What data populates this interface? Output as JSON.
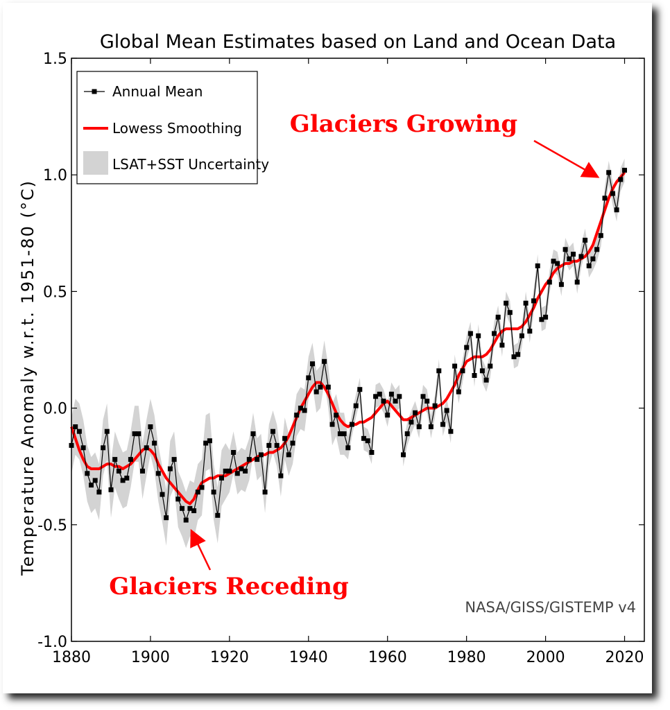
{
  "chart_data": {
    "type": "line",
    "title": "Global Mean Estimates based on Land and Ocean Data",
    "xlabel": "",
    "ylabel": "Temperature Anomaly w.r.t. 1951-80 (°C)",
    "xlim": [
      1880,
      2025
    ],
    "ylim": [
      -1.0,
      1.5
    ],
    "x_ticks": [
      1880,
      1900,
      1920,
      1940,
      1960,
      1980,
      2000,
      2020
    ],
    "y_ticks": [
      -1.0,
      -0.5,
      0.0,
      0.5,
      1.0,
      1.5
    ],
    "y_tick_labels": [
      "-1.0",
      "-0.5",
      "0.0",
      "0.5",
      "1.0",
      "1.5"
    ],
    "grid": false,
    "legend_position": "top-left",
    "legend": [
      "Annual Mean",
      "Lowess Smoothing",
      "LSAT+SST Uncertainty"
    ],
    "source_label": "NASA/GISS/GISTEMP v4",
    "colors": {
      "annual": "#000000",
      "lowess": "#ff0000",
      "uncertainty": "#d3d3d3",
      "annotation": "#ff0000"
    },
    "annotations": [
      {
        "text": "Glaciers Growing",
        "target_year": 2015,
        "target_value": 1.0
      },
      {
        "text": "Glaciers Receding",
        "target_year": 1910,
        "target_value": -0.49
      }
    ],
    "x": [
      1880,
      1881,
      1882,
      1883,
      1884,
      1885,
      1886,
      1887,
      1888,
      1889,
      1890,
      1891,
      1892,
      1893,
      1894,
      1895,
      1896,
      1897,
      1898,
      1899,
      1900,
      1901,
      1902,
      1903,
      1904,
      1905,
      1906,
      1907,
      1908,
      1909,
      1910,
      1911,
      1912,
      1913,
      1914,
      1915,
      1916,
      1917,
      1918,
      1919,
      1920,
      1921,
      1922,
      1923,
      1924,
      1925,
      1926,
      1927,
      1928,
      1929,
      1930,
      1931,
      1932,
      1933,
      1934,
      1935,
      1936,
      1937,
      1938,
      1939,
      1940,
      1941,
      1942,
      1943,
      1944,
      1945,
      1946,
      1947,
      1948,
      1949,
      1950,
      1951,
      1952,
      1953,
      1954,
      1955,
      1956,
      1957,
      1958,
      1959,
      1960,
      1961,
      1962,
      1963,
      1964,
      1965,
      1966,
      1967,
      1968,
      1969,
      1970,
      1971,
      1972,
      1973,
      1974,
      1975,
      1976,
      1977,
      1978,
      1979,
      1980,
      1981,
      1982,
      1983,
      1984,
      1985,
      1986,
      1987,
      1988,
      1989,
      1990,
      1991,
      1992,
      1993,
      1994,
      1995,
      1996,
      1997,
      1998,
      1999,
      2000,
      2001,
      2002,
      2003,
      2004,
      2005,
      2006,
      2007,
      2008,
      2009,
      2010,
      2011,
      2012,
      2013,
      2014,
      2015,
      2016,
      2017,
      2018,
      2019,
      2020
    ],
    "series": [
      {
        "name": "Annual Mean",
        "values": [
          -0.16,
          -0.08,
          -0.1,
          -0.17,
          -0.28,
          -0.33,
          -0.31,
          -0.36,
          -0.17,
          -0.1,
          -0.35,
          -0.22,
          -0.27,
          -0.31,
          -0.3,
          -0.22,
          -0.11,
          -0.11,
          -0.27,
          -0.17,
          -0.08,
          -0.15,
          -0.28,
          -0.37,
          -0.47,
          -0.26,
          -0.22,
          -0.39,
          -0.43,
          -0.48,
          -0.43,
          -0.44,
          -0.36,
          -0.34,
          -0.15,
          -0.14,
          -0.36,
          -0.46,
          -0.3,
          -0.27,
          -0.27,
          -0.19,
          -0.28,
          -0.26,
          -0.27,
          -0.22,
          -0.11,
          -0.22,
          -0.2,
          -0.36,
          -0.16,
          -0.1,
          -0.16,
          -0.29,
          -0.13,
          -0.2,
          -0.15,
          -0.03,
          -0.0,
          -0.01,
          0.13,
          0.19,
          0.07,
          0.09,
          0.2,
          0.09,
          -0.07,
          -0.03,
          -0.11,
          -0.11,
          -0.17,
          -0.07,
          0.01,
          0.08,
          -0.13,
          -0.14,
          -0.19,
          0.05,
          0.06,
          0.03,
          -0.03,
          0.06,
          0.03,
          0.05,
          -0.2,
          -0.11,
          -0.06,
          -0.02,
          -0.08,
          0.05,
          0.03,
          -0.08,
          0.01,
          0.16,
          -0.07,
          -0.01,
          -0.1,
          0.18,
          0.07,
          0.16,
          0.26,
          0.32,
          0.14,
          0.31,
          0.16,
          0.12,
          0.18,
          0.32,
          0.39,
          0.27,
          0.45,
          0.41,
          0.22,
          0.23,
          0.31,
          0.45,
          0.33,
          0.46,
          0.61,
          0.38,
          0.39,
          0.54,
          0.63,
          0.62,
          0.53,
          0.68,
          0.64,
          0.66,
          0.54,
          0.65,
          0.72,
          0.61,
          0.64,
          0.68,
          0.74,
          0.9,
          1.01,
          0.92,
          0.85,
          0.98,
          1.02
        ]
      },
      {
        "name": "Lowess Smoothing",
        "values": [
          -0.08,
          -0.13,
          -0.18,
          -0.22,
          -0.25,
          -0.26,
          -0.26,
          -0.26,
          -0.25,
          -0.24,
          -0.24,
          -0.25,
          -0.25,
          -0.26,
          -0.25,
          -0.24,
          -0.22,
          -0.2,
          -0.18,
          -0.17,
          -0.18,
          -0.2,
          -0.24,
          -0.27,
          -0.3,
          -0.32,
          -0.34,
          -0.36,
          -0.38,
          -0.4,
          -0.41,
          -0.39,
          -0.35,
          -0.32,
          -0.31,
          -0.3,
          -0.3,
          -0.29,
          -0.29,
          -0.29,
          -0.28,
          -0.27,
          -0.26,
          -0.25,
          -0.24,
          -0.23,
          -0.22,
          -0.21,
          -0.2,
          -0.2,
          -0.19,
          -0.19,
          -0.18,
          -0.17,
          -0.15,
          -0.12,
          -0.08,
          -0.04,
          0.0,
          0.03,
          0.06,
          0.09,
          0.11,
          0.11,
          0.09,
          0.06,
          0.02,
          -0.02,
          -0.05,
          -0.07,
          -0.08,
          -0.07,
          -0.07,
          -0.06,
          -0.06,
          -0.05,
          -0.04,
          -0.02,
          0.0,
          0.02,
          0.03,
          0.01,
          -0.01,
          -0.03,
          -0.05,
          -0.05,
          -0.04,
          -0.03,
          -0.02,
          -0.01,
          0.0,
          0.0,
          0.0,
          0.01,
          0.02,
          0.04,
          0.07,
          0.1,
          0.14,
          0.17,
          0.2,
          0.21,
          0.22,
          0.22,
          0.22,
          0.23,
          0.25,
          0.28,
          0.31,
          0.33,
          0.34,
          0.34,
          0.34,
          0.34,
          0.35,
          0.37,
          0.4,
          0.43,
          0.47,
          0.5,
          0.53,
          0.55,
          0.58,
          0.6,
          0.61,
          0.62,
          0.62,
          0.63,
          0.63,
          0.64,
          0.65,
          0.67,
          0.7,
          0.75,
          0.8,
          0.85,
          0.9,
          0.94,
          0.97,
          0.99,
          1.01
        ]
      }
    ]
  }
}
